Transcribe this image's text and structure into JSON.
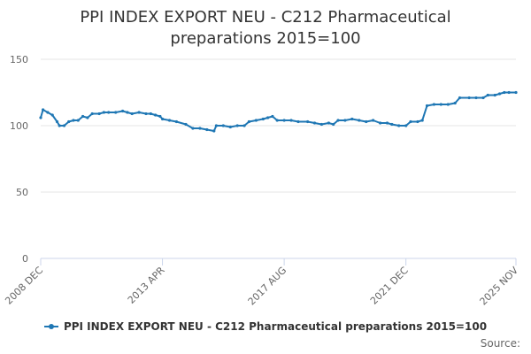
{
  "title_line1": "PPI INDEX EXPORT NEU - C212 Pharmaceutical",
  "title_line2": "preparations 2015=100",
  "source_label": "Source:",
  "colors": {
    "series": "#1f77b4",
    "grid": "#e6e6e6",
    "axis": "#ccd6eb",
    "label": "#666666"
  },
  "chart_data": {
    "type": "line",
    "title": "PPI INDEX EXPORT NEU - C212 Pharmaceutical preparations 2015=100",
    "xlabel": "",
    "ylabel": "",
    "ylim": [
      0,
      150
    ],
    "yticks": [
      0,
      50,
      100,
      150
    ],
    "xlim": [
      "2008-12",
      "2025-11"
    ],
    "xticks": [
      {
        "date": "2008-12",
        "label": "2008 DEC"
      },
      {
        "date": "2013-04",
        "label": "2013 APR"
      },
      {
        "date": "2017-08",
        "label": "2017 AUG"
      },
      {
        "date": "2021-12",
        "label": "2021 DEC"
      },
      {
        "date": "2025-11",
        "label": "2025 NOV"
      }
    ],
    "grid": true,
    "legend_position": "bottom",
    "series": [
      {
        "name": "PPI INDEX EXPORT NEU - C212 Pharmaceutical preparations 2015=100",
        "points": [
          [
            "2008-12",
            106
          ],
          [
            "2009-01",
            112
          ],
          [
            "2009-03",
            110
          ],
          [
            "2009-05",
            108
          ],
          [
            "2009-07",
            103
          ],
          [
            "2009-08",
            100
          ],
          [
            "2009-10",
            100
          ],
          [
            "2009-12",
            103
          ],
          [
            "2010-02",
            104
          ],
          [
            "2010-04",
            104
          ],
          [
            "2010-06",
            107
          ],
          [
            "2010-08",
            106
          ],
          [
            "2010-10",
            109
          ],
          [
            "2011-01",
            109
          ],
          [
            "2011-03",
            110
          ],
          [
            "2011-05",
            110
          ],
          [
            "2011-08",
            110
          ],
          [
            "2011-11",
            111
          ],
          [
            "2012-01",
            110
          ],
          [
            "2012-03",
            109
          ],
          [
            "2012-06",
            110
          ],
          [
            "2012-09",
            109
          ],
          [
            "2012-11",
            109
          ],
          [
            "2013-01",
            108
          ],
          [
            "2013-03",
            107
          ],
          [
            "2013-04",
            105
          ],
          [
            "2013-07",
            104
          ],
          [
            "2013-10",
            103
          ],
          [
            "2014-02",
            101
          ],
          [
            "2014-05",
            98
          ],
          [
            "2014-08",
            98
          ],
          [
            "2014-11",
            97
          ],
          [
            "2015-02",
            96
          ],
          [
            "2015-03",
            100
          ],
          [
            "2015-06",
            100
          ],
          [
            "2015-09",
            99
          ],
          [
            "2015-12",
            100
          ],
          [
            "2016-03",
            100
          ],
          [
            "2016-05",
            103
          ],
          [
            "2016-08",
            104
          ],
          [
            "2016-11",
            105
          ],
          [
            "2017-01",
            106
          ],
          [
            "2017-03",
            107
          ],
          [
            "2017-05",
            104
          ],
          [
            "2017-08",
            104
          ],
          [
            "2017-11",
            104
          ],
          [
            "2018-02",
            103
          ],
          [
            "2018-06",
            103
          ],
          [
            "2018-09",
            102
          ],
          [
            "2018-12",
            101
          ],
          [
            "2019-03",
            102
          ],
          [
            "2019-05",
            101
          ],
          [
            "2019-07",
            104
          ],
          [
            "2019-10",
            104
          ],
          [
            "2020-01",
            105
          ],
          [
            "2020-04",
            104
          ],
          [
            "2020-07",
            103
          ],
          [
            "2020-10",
            104
          ],
          [
            "2021-01",
            102
          ],
          [
            "2021-04",
            102
          ],
          [
            "2021-06",
            101
          ],
          [
            "2021-09",
            100
          ],
          [
            "2021-12",
            100
          ],
          [
            "2022-02",
            103
          ],
          [
            "2022-05",
            103
          ],
          [
            "2022-07",
            104
          ],
          [
            "2022-09",
            115
          ],
          [
            "2022-12",
            116
          ],
          [
            "2023-03",
            116
          ],
          [
            "2023-06",
            116
          ],
          [
            "2023-09",
            117
          ],
          [
            "2023-11",
            121
          ],
          [
            "2024-03",
            121
          ],
          [
            "2024-06",
            121
          ],
          [
            "2024-09",
            121
          ],
          [
            "2024-11",
            123
          ],
          [
            "2025-02",
            123
          ],
          [
            "2025-04",
            124
          ],
          [
            "2025-06",
            125
          ],
          [
            "2025-08",
            125
          ],
          [
            "2025-11",
            125
          ]
        ]
      }
    ]
  }
}
